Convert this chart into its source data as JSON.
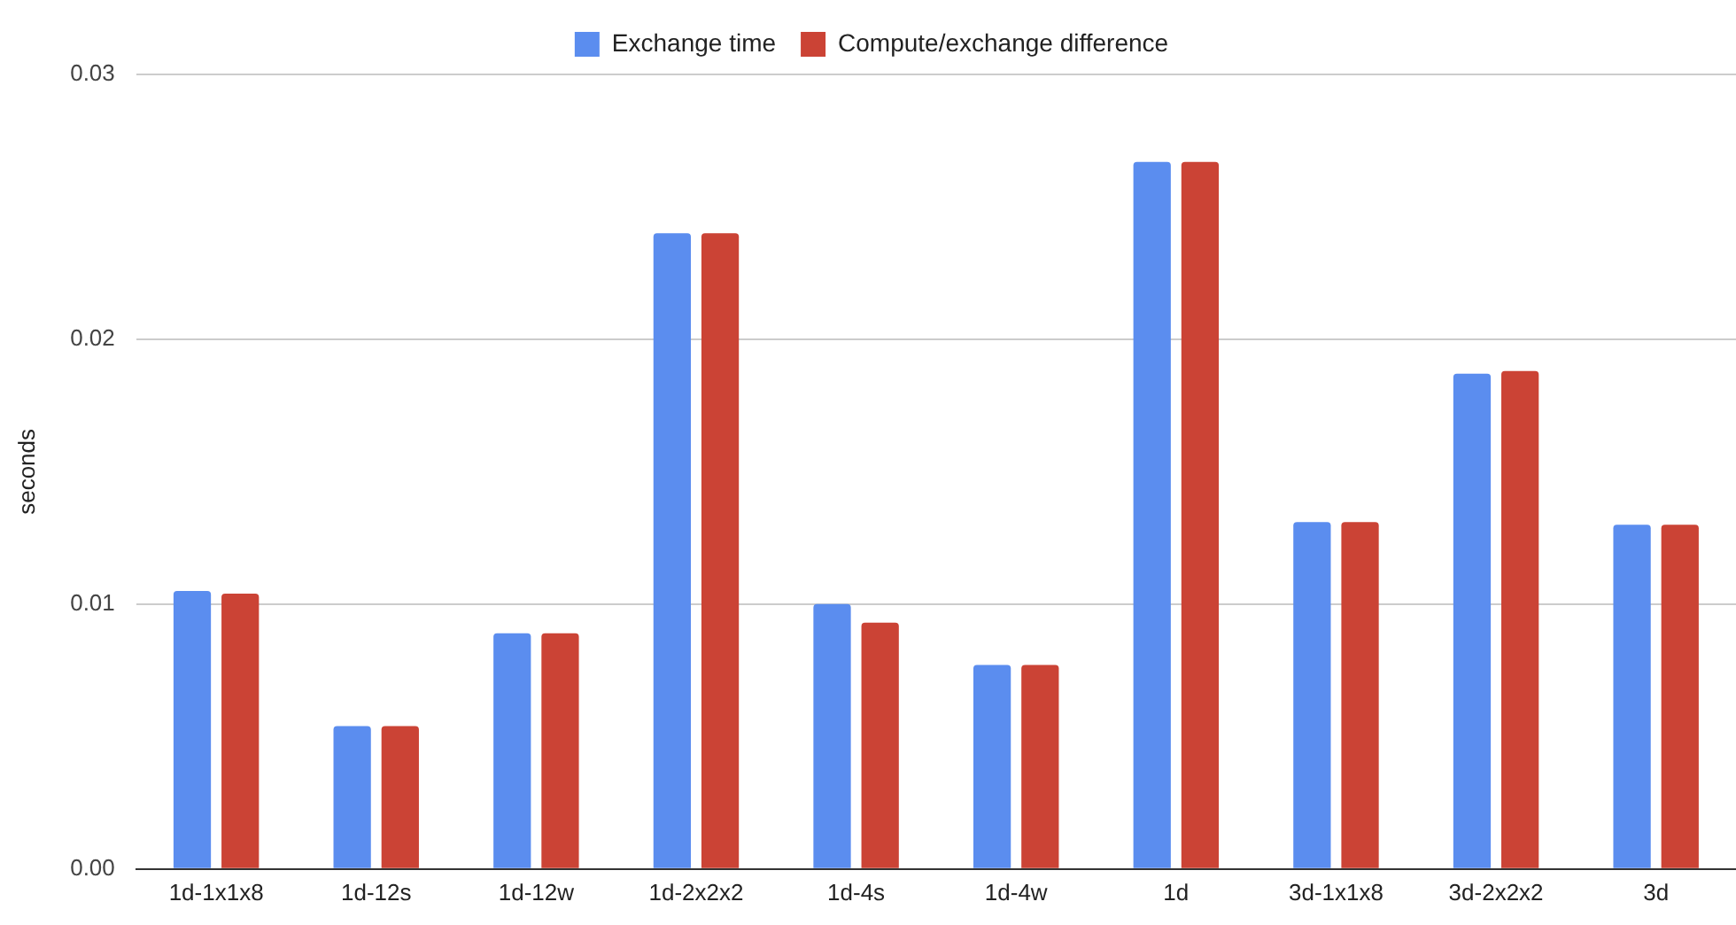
{
  "chart_data": {
    "type": "bar",
    "ylabel": "seconds",
    "categories": [
      "1d-1x1x8",
      "1d-12s",
      "1d-12w",
      "1d-2x2x2",
      "1d-4s",
      "1d-4w",
      "1d",
      "3d-1x1x8",
      "3d-2x2x2",
      "3d"
    ],
    "series": [
      {
        "name": "Exchange time",
        "color": "#5b8def",
        "values": [
          0.0105,
          0.0054,
          0.0089,
          0.024,
          0.01,
          0.0077,
          0.0267,
          0.0131,
          0.0187,
          0.013
        ]
      },
      {
        "name": "Compute/exchange difference",
        "color": "#cb4335",
        "values": [
          0.0104,
          0.0054,
          0.0089,
          0.024,
          0.0093,
          0.0077,
          0.0267,
          0.0131,
          0.0188,
          0.013
        ]
      }
    ],
    "ylim": [
      0,
      0.03
    ],
    "yticks": [
      {
        "value": 0,
        "label": "0.00"
      },
      {
        "value": 0.01,
        "label": "0.01"
      },
      {
        "value": 0.02,
        "label": "0.02"
      },
      {
        "value": 0.03,
        "label": "0.03"
      }
    ],
    "grid": "y",
    "legend": "top"
  }
}
